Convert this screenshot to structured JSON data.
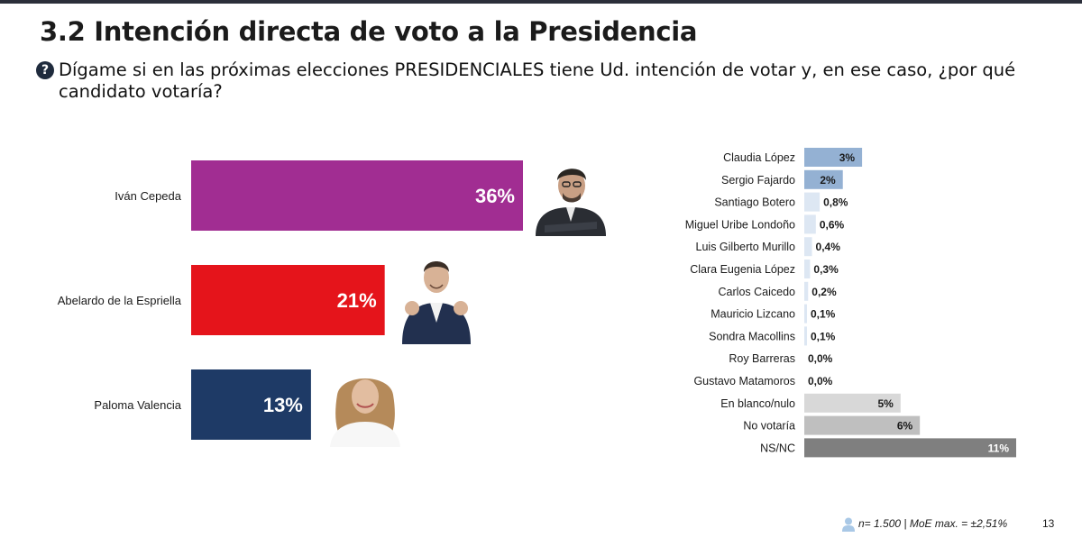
{
  "title": "3.2 Intención directa de voto a la Presidencia",
  "question": {
    "icon": "question-circle-icon",
    "text": "Dígame si en las próximas elecciones PRESIDENCIALES tiene Ud. intención de votar y, en ese caso, ¿por qué candidato votaría?"
  },
  "chart_data": [
    {
      "type": "bar",
      "orientation": "horizontal",
      "categories": [
        "Iván Cepeda",
        "Abelardo de la Espriella",
        "Paloma Valencia"
      ],
      "values": [
        36,
        21,
        13
      ],
      "data_labels": [
        "36%",
        "21%",
        "13%"
      ],
      "colors": [
        "#a12d92",
        "#e5141b",
        "#1e3a66"
      ],
      "xlim": [
        0,
        36
      ]
    },
    {
      "type": "bar",
      "orientation": "horizontal",
      "categories": [
        "Claudia López",
        "Sergio Fajardo",
        "Santiago Botero",
        "Miguel Uribe Londoño",
        "Luis Gilberto Murillo",
        "Clara Eugenia López",
        "Carlos Caicedo",
        "Mauricio Lizcano",
        "Sondra Macollins",
        "Roy Barreras",
        "Gustavo Matamoros",
        "En blanco/nulo",
        "No votaría",
        "NS/NC"
      ],
      "values": [
        3,
        2,
        0.8,
        0.6,
        0.4,
        0.3,
        0.2,
        0.1,
        0.1,
        0.0,
        0.0,
        5,
        6,
        11
      ],
      "data_labels": [
        "3%",
        "2%",
        "0,8%",
        "0,6%",
        "0,4%",
        "0,3%",
        "0,2%",
        "0,1%",
        "0,1%",
        "0,0%",
        "0,0%",
        "5%",
        "6%",
        "11%"
      ],
      "colors": [
        "#94b1d3",
        "#94b1d3",
        "#dde7f3",
        "#dde7f3",
        "#dde7f3",
        "#dde7f3",
        "#dde7f3",
        "#dde7f3",
        "#dde7f3",
        "#dde7f3",
        "#dde7f3",
        "#d8d8d8",
        "#bfbfbf",
        "#7f7f7f"
      ],
      "label_colors": [
        "#1a1a1a",
        "#1a1a1a",
        "#1a1a1a",
        "#1a1a1a",
        "#1a1a1a",
        "#1a1a1a",
        "#1a1a1a",
        "#1a1a1a",
        "#1a1a1a",
        "#1a1a1a",
        "#1a1a1a",
        "#1a1a1a",
        "#1a1a1a",
        "#ffffff"
      ],
      "xlim": [
        0,
        11
      ]
    }
  ],
  "footer": {
    "icon": "person-icon",
    "note": "n= 1.500  | MoE max. = ±2,51%",
    "page_number": "13"
  }
}
